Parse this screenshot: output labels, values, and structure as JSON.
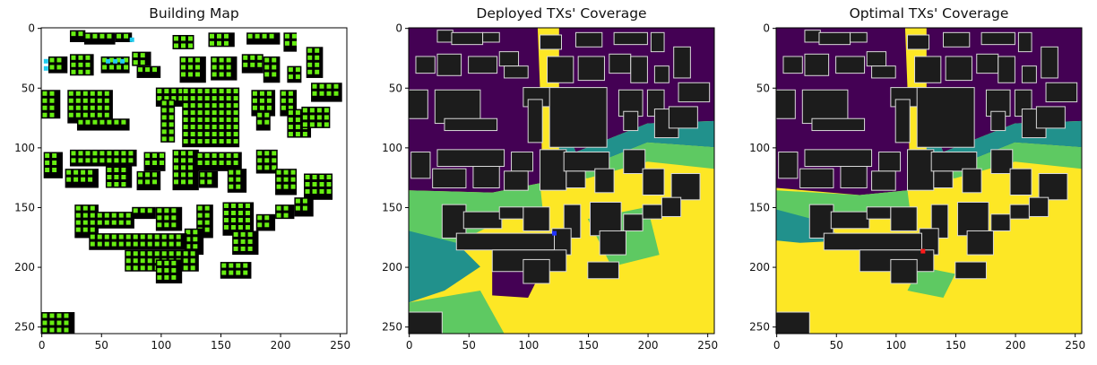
{
  "chart_data": [
    {
      "type": "heatmap",
      "title": "Building Map",
      "xlim": [
        0,
        255
      ],
      "ylim": [
        255,
        0
      ],
      "xticks": [
        "0",
        "50",
        "100",
        "150",
        "200",
        "250"
      ],
      "yticks": [
        "0",
        "50",
        "100",
        "150",
        "200",
        "250"
      ],
      "colors": {
        "background": "#ffffff",
        "building": "#000000",
        "marker_green": "#66ee11",
        "marker_cyan": "#22ccee"
      }
    },
    {
      "type": "heatmap",
      "title": "Deployed TXs' Coverage",
      "xlim": [
        0,
        255
      ],
      "ylim": [
        255,
        0
      ],
      "xticks": [
        "0",
        "50",
        "100",
        "150",
        "200",
        "250"
      ],
      "yticks": [
        "0",
        "50",
        "100",
        "150",
        "200",
        "250"
      ],
      "tx_marker": {
        "x": 122,
        "y": 172,
        "color": "#2233ff"
      },
      "colors": {
        "low": "#440154",
        "mid": "#21918c",
        "high": "#5ec962",
        "max": "#fde725",
        "building": "#1c1c1c"
      }
    },
    {
      "type": "heatmap",
      "title": "Optimal TXs' Coverage",
      "xlim": [
        0,
        255
      ],
      "ylim": [
        255,
        0
      ],
      "xticks": [
        "0",
        "50",
        "100",
        "150",
        "200",
        "250"
      ],
      "yticks": [
        "0",
        "50",
        "100",
        "150",
        "200",
        "250"
      ],
      "tx_marker": {
        "x": 123,
        "y": 187,
        "color": "#ff1a1a"
      },
      "colors": {
        "low": "#440154",
        "mid": "#21918c",
        "high": "#5ec962",
        "max": "#fde725",
        "building": "#1c1c1c"
      }
    }
  ]
}
